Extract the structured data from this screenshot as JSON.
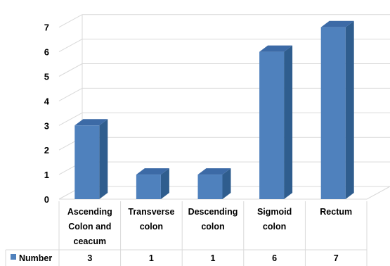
{
  "chart_data": {
    "type": "bar",
    "categories": [
      [
        "Ascending",
        "Colon and",
        "ceacum"
      ],
      [
        "Transverse",
        "colon"
      ],
      [
        "Descending",
        "colon"
      ],
      [
        "Sigmoid",
        "colon"
      ],
      [
        "Rectum"
      ]
    ],
    "series": [
      {
        "name": "Number",
        "values": [
          3,
          1,
          1,
          6,
          7
        ]
      }
    ],
    "ylim": [
      0,
      7
    ],
    "yticks": [
      0,
      1,
      2,
      3,
      4,
      5,
      6,
      7
    ],
    "grid": true,
    "legend": "data-table-left",
    "colors": {
      "bar_front": "#4f81bd",
      "bar_side": "#2f5d8e",
      "bar_top": "#3c6aa6",
      "grid": "#d9d9d9"
    }
  }
}
